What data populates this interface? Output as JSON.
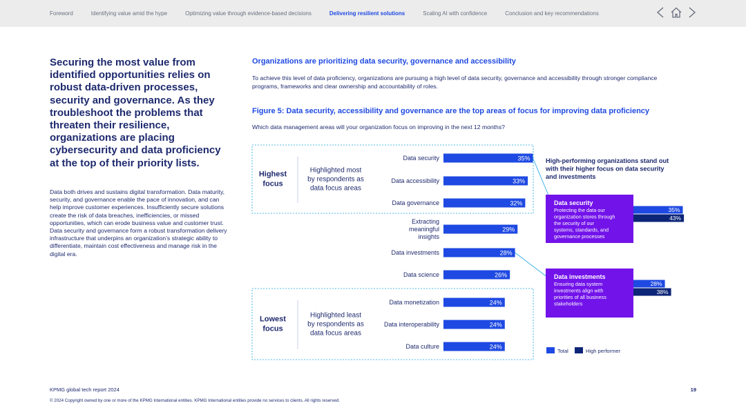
{
  "nav": {
    "items": [
      "Foreword",
      "Identifying value amid the hype",
      "Optimizing value through evidence-based decisions",
      "Delivering resilient solutions",
      "Scaling AI with confidence",
      "Conclusion and key recommendations"
    ],
    "active_index": 3
  },
  "lead_text": "Securing the most value from identified opportunities relies on robust data-driven processes, security and governance. As they troubleshoot the problems that threaten their resilience, organizations are placing cybersecurity and data proficiency at the top of their priority lists.",
  "body_text": "Data both drives and sustains digital transformation. Data maturity, security, and governance enable the pace of innovation, and can help improve customer experiences. Insufficiently secure solutions create the risk of data breaches, inefficiencies, or missed opportunities, which can erode business value and customer trust. Data security and governance form a robust transformation delivery infrastructure that underpins an organization’s strategic ability to differentiate, maintain cost effectiveness and manage risk in the digital era.",
  "section": {
    "title": "Organizations are prioritizing data security, governance and accessibility",
    "description": "To achieve this level of data proficiency, organizations are pursuing a high level of data security, governance and accessibility through stronger compliance programs, frameworks and clear ownership and accountability of roles."
  },
  "figure": {
    "title": "Figure 5: Data security, accessibility and governance are the top areas of focus for improving data proficiency",
    "question": "Which data management areas will your organization focus on improving in the next 12 months?"
  },
  "chart_data": {
    "type": "bar",
    "orientation": "horizontal",
    "categories": [
      "Data security",
      "Data accessibility",
      "Data governance",
      "Extracting meaningful insights",
      "Data investments",
      "Data science",
      "Data monetization",
      "Data interoperability",
      "Data culture"
    ],
    "values": [
      35,
      33,
      32,
      29,
      28,
      26,
      24,
      24,
      24
    ],
    "unit": "%",
    "groups": [
      {
        "label": "Highest focus",
        "description": "Highlighted most by respondents as data focus areas"
      },
      {
        "label": "Lowest focus",
        "description": "Highlighted least by respondents as data focus areas"
      }
    ],
    "callout_heading": "High-performing organizations stand out with their higher focus on data security and investments",
    "callouts": [
      {
        "title": "Data security",
        "text": "Protecting the data our organization stores through the security of our systems, standards, and governance processes",
        "total": 35,
        "high_performer": 43
      },
      {
        "title": "Data investments",
        "text": "Ensuring data system investments align with priorities of all business stakeholders",
        "total": 28,
        "high_performer": 38
      }
    ],
    "legend": [
      "Total",
      "High performer"
    ],
    "colors": {
      "total": "#1e49e2",
      "high_performer": "#0c2577",
      "callout_bg": "#7213ea",
      "connector": "#1aa3e0",
      "group_border": "#1aa3e0"
    }
  },
  "footer": {
    "report": "KPMG global tech report 2024",
    "page": "19",
    "copyright": "© 2024 Copyright owned by one or more of the KPMG International entities. KPMG International entities provide no services to clients. All rights reserved."
  }
}
